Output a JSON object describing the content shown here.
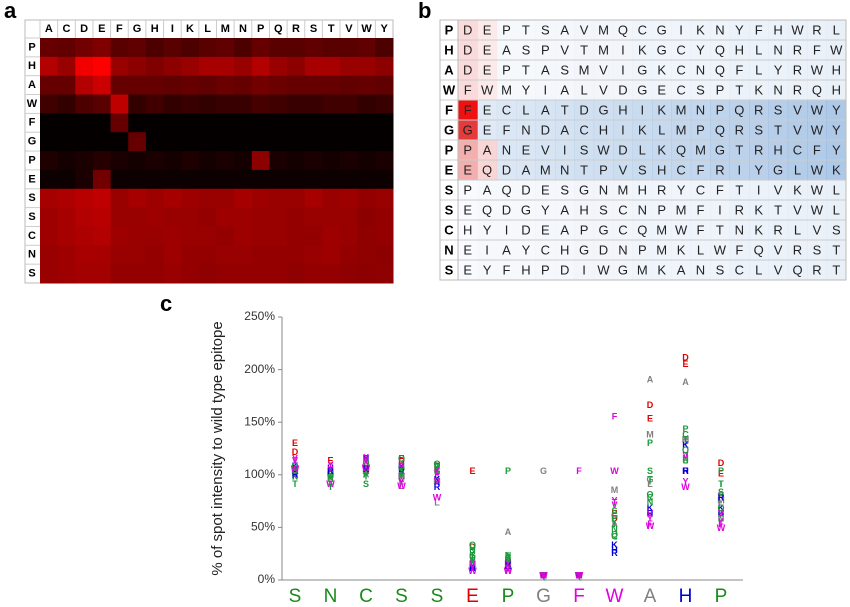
{
  "panel_labels": [
    "a",
    "b",
    "c"
  ],
  "chart_data": [
    {
      "type": "heatmap",
      "columns": [
        "A",
        "C",
        "D",
        "E",
        "F",
        "G",
        "H",
        "I",
        "K",
        "L",
        "M",
        "N",
        "P",
        "Q",
        "R",
        "S",
        "T",
        "V",
        "W",
        "Y"
      ],
      "rows": [
        "P",
        "H",
        "A",
        "W",
        "F",
        "G",
        "P",
        "E",
        "S",
        "S",
        "C",
        "N",
        "S"
      ],
      "values": [
        [
          40,
          38,
          45,
          50,
          35,
          38,
          30,
          35,
          30,
          35,
          38,
          30,
          40,
          35,
          35,
          38,
          35,
          35,
          38,
          30
        ],
        [
          70,
          60,
          95,
          100,
          60,
          55,
          50,
          55,
          60,
          65,
          65,
          60,
          70,
          60,
          55,
          65,
          65,
          60,
          60,
          55
        ],
        [
          40,
          40,
          70,
          80,
          40,
          40,
          40,
          38,
          40,
          38,
          42,
          40,
          45,
          42,
          40,
          40,
          40,
          38,
          40,
          38
        ],
        [
          25,
          20,
          30,
          35,
          75,
          20,
          25,
          20,
          22,
          20,
          22,
          22,
          28,
          25,
          22,
          22,
          25,
          25,
          20,
          22
        ],
        [
          2,
          2,
          2,
          2,
          40,
          2,
          2,
          2,
          2,
          2,
          2,
          2,
          2,
          2,
          2,
          2,
          2,
          2,
          2,
          2
        ],
        [
          2,
          2,
          2,
          2,
          2,
          40,
          2,
          2,
          2,
          2,
          2,
          2,
          2,
          2,
          2,
          2,
          2,
          2,
          2,
          2
        ],
        [
          12,
          8,
          10,
          15,
          10,
          8,
          10,
          8,
          12,
          8,
          10,
          8,
          55,
          10,
          8,
          10,
          8,
          10,
          8,
          10
        ],
        [
          5,
          5,
          10,
          45,
          5,
          5,
          5,
          5,
          5,
          5,
          5,
          5,
          5,
          5,
          5,
          5,
          5,
          5,
          5,
          5
        ],
        [
          65,
          68,
          72,
          75,
          60,
          65,
          62,
          65,
          62,
          60,
          60,
          65,
          62,
          60,
          60,
          65,
          60,
          62,
          58,
          60
        ],
        [
          62,
          65,
          70,
          72,
          60,
          60,
          62,
          60,
          60,
          58,
          62,
          62,
          60,
          60,
          58,
          60,
          60,
          60,
          55,
          58
        ],
        [
          62,
          65,
          68,
          70,
          62,
          60,
          60,
          62,
          60,
          60,
          58,
          62,
          60,
          60,
          58,
          58,
          62,
          60,
          56,
          58
        ],
        [
          60,
          62,
          66,
          65,
          60,
          60,
          58,
          62,
          58,
          58,
          60,
          60,
          58,
          58,
          58,
          60,
          62,
          58,
          56,
          55
        ],
        [
          60,
          62,
          64,
          64,
          58,
          58,
          58,
          60,
          58,
          56,
          58,
          58,
          58,
          58,
          56,
          58,
          58,
          56,
          55,
          56
        ]
      ]
    },
    {
      "type": "scatter",
      "ylabel": "% of spot intensity to wild type epitope",
      "categories": [
        "S",
        "N",
        "C",
        "S",
        "S",
        "E",
        "P",
        "G",
        "F",
        "W",
        "A",
        "H",
        "P"
      ],
      "category_colors": [
        "#1a8a1a",
        "#1a8a1a",
        "#1a8a1a",
        "#1a8a1a",
        "#1a8a1a",
        "#e00000",
        "#1a8a1a",
        "#808080",
        "#e000e0",
        "#e000e0",
        "#808080",
        "#0000d0",
        "#1a8a1a"
      ],
      "letters": [
        "A",
        "C",
        "D",
        "E",
        "F",
        "G",
        "H",
        "I",
        "K",
        "L",
        "M",
        "N",
        "P",
        "Q",
        "R",
        "S",
        "T",
        "V",
        "W",
        "Y"
      ],
      "letter_colors": {
        "A": "#808080",
        "C": "#1a9a3a",
        "D": "#e00000",
        "E": "#e00000",
        "F": "#e000e0",
        "G": "#808080",
        "H": "#0000d0",
        "I": "#1a9a3a",
        "K": "#0000d0",
        "L": "#808080",
        "M": "#808080",
        "N": "#1a9a3a",
        "P": "#1a9a3a",
        "Q": "#1a9a3a",
        "R": "#0000d0",
        "S": "#1a9a3a",
        "T": "#1a9a3a",
        "V": "#e000e0",
        "W": "#e000e0",
        "Y": "#e000e0"
      },
      "values": [
        [
          100,
          105,
          118,
          127,
          95,
          100,
          103,
          100,
          105,
          98,
          100,
          95,
          100,
          105,
          97,
          100,
          88,
          110,
          102,
          112
        ],
        [
          95,
          92,
          100,
          110,
          100,
          98,
          103,
          95,
          100,
          93,
          97,
          100,
          95,
          97,
          100,
          92,
          85,
          102,
          88,
          106
        ],
        [
          97,
          100,
          105,
          112,
          105,
          100,
          112,
          110,
          100,
          98,
          100,
          102,
          97,
          108,
          102,
          88,
          95,
          110,
          103,
          113
        ],
        [
          97,
          92,
          110,
          112,
          88,
          104,
          105,
          100,
          104,
          86,
          95,
          103,
          97,
          112,
          100,
          100,
          95,
          106,
          86,
          90
        ],
        [
          95,
          100,
          105,
          100,
          97,
          100,
          90,
          100,
          92,
          70,
          90,
          106,
          104,
          107,
          85,
          100,
          100,
          90,
          75,
          100
        ],
        [
          12,
          18,
          28,
          100,
          10,
          20,
          8,
          20,
          8,
          15,
          12,
          25,
          15,
          30,
          8,
          20,
          15,
          12,
          5,
          8
        ],
        [
          42,
          18,
          15,
          8,
          5,
          8,
          10,
          20,
          10,
          12,
          12,
          20,
          100,
          15,
          12,
          17,
          15,
          8,
          5,
          12
        ],
        [
          1,
          1,
          1,
          1,
          1,
          100,
          1,
          1,
          1,
          1,
          1,
          1,
          1,
          1,
          1,
          1,
          1,
          1,
          1,
          1
        ],
        [
          1,
          1,
          1,
          1,
          100,
          1,
          1,
          1,
          1,
          1,
          1,
          1,
          1,
          1,
          1,
          1,
          1,
          1,
          1,
          1
        ],
        [
          50,
          38,
          55,
          60,
          152,
          58,
          25,
          50,
          30,
          52,
          82,
          45,
          55,
          40,
          22,
          62,
          70,
          68,
          100,
          72
        ],
        [
          187,
          75,
          163,
          150,
          50,
          92,
          60,
          90,
          65,
          88,
          135,
          70,
          127,
          78,
          60,
          100,
          92,
          60,
          48,
          55
        ],
        [
          185,
          135,
          208,
          202,
          100,
          128,
          100,
          130,
          125,
          110,
          130,
          112,
          140,
          120,
          100,
          110,
          130,
          115,
          85,
          90
        ],
        [
          78,
          60,
          108,
          98,
          50,
          78,
          60,
          88,
          65,
          70,
          72,
          55,
          100,
          65,
          75,
          80,
          88,
          60,
          46,
          52
        ]
      ],
      "ylim": [
        0,
        250
      ],
      "yticks": [
        {
          "value": 0,
          "label": "0%"
        },
        {
          "value": 50,
          "label": "50%"
        },
        {
          "value": 100,
          "label": "100%"
        },
        {
          "value": 150,
          "label": "150%"
        },
        {
          "value": 200,
          "label": "200%"
        },
        {
          "value": 250,
          "label": "250%"
        }
      ]
    }
  ],
  "grid": {
    "rows": [
      {
        "head": "P",
        "cells": [
          "D",
          "E",
          "P",
          "T",
          "S",
          "A",
          "V",
          "M",
          "Q",
          "C",
          "G",
          "I",
          "K",
          "N",
          "Y",
          "F",
          "H",
          "W",
          "R",
          "L"
        ]
      },
      {
        "head": "H",
        "cells": [
          "D",
          "E",
          "A",
          "S",
          "P",
          "V",
          "T",
          "M",
          "I",
          "K",
          "G",
          "C",
          "Y",
          "Q",
          "H",
          "L",
          "N",
          "R",
          "F",
          "W"
        ]
      },
      {
        "head": "A",
        "cells": [
          "D",
          "E",
          "P",
          "T",
          "A",
          "S",
          "M",
          "V",
          "I",
          "G",
          "K",
          "C",
          "N",
          "Q",
          "F",
          "L",
          "Y",
          "R",
          "W",
          "H"
        ]
      },
      {
        "head": "W",
        "cells": [
          "F",
          "W",
          "M",
          "Y",
          "I",
          "A",
          "L",
          "V",
          "D",
          "G",
          "E",
          "C",
          "S",
          "P",
          "T",
          "K",
          "N",
          "R",
          "Q",
          "H"
        ]
      },
      {
        "head": "F",
        "cells": [
          "F",
          "E",
          "C",
          "L",
          "A",
          "T",
          "D",
          "G",
          "H",
          "I",
          "K",
          "M",
          "N",
          "P",
          "Q",
          "R",
          "S",
          "V",
          "W",
          "Y"
        ]
      },
      {
        "head": "G",
        "cells": [
          "G",
          "E",
          "F",
          "N",
          "D",
          "A",
          "C",
          "H",
          "I",
          "K",
          "L",
          "M",
          "P",
          "Q",
          "R",
          "S",
          "T",
          "V",
          "W",
          "Y"
        ]
      },
      {
        "head": "P",
        "cells": [
          "P",
          "A",
          "N",
          "E",
          "V",
          "I",
          "S",
          "W",
          "D",
          "L",
          "K",
          "Q",
          "M",
          "G",
          "T",
          "R",
          "H",
          "C",
          "F",
          "Y"
        ]
      },
      {
        "head": "E",
        "cells": [
          "E",
          "Q",
          "D",
          "A",
          "M",
          "N",
          "T",
          "P",
          "V",
          "S",
          "H",
          "C",
          "F",
          "R",
          "I",
          "Y",
          "G",
          "L",
          "W",
          "K"
        ]
      },
      {
        "head": "S",
        "cells": [
          "P",
          "A",
          "Q",
          "D",
          "E",
          "S",
          "G",
          "N",
          "M",
          "H",
          "R",
          "Y",
          "C",
          "F",
          "T",
          "I",
          "V",
          "K",
          "W",
          "L"
        ]
      },
      {
        "head": "S",
        "cells": [
          "E",
          "Q",
          "D",
          "G",
          "Y",
          "A",
          "H",
          "S",
          "C",
          "N",
          "P",
          "M",
          "F",
          "I",
          "R",
          "K",
          "T",
          "V",
          "W",
          "L"
        ]
      },
      {
        "head": "C",
        "cells": [
          "H",
          "Y",
          "I",
          "D",
          "E",
          "A",
          "P",
          "G",
          "C",
          "Q",
          "M",
          "W",
          "F",
          "T",
          "N",
          "K",
          "R",
          "L",
          "V",
          "S"
        ]
      },
      {
        "head": "N",
        "cells": [
          "E",
          "I",
          "A",
          "Y",
          "C",
          "H",
          "G",
          "D",
          "N",
          "P",
          "M",
          "K",
          "L",
          "W",
          "F",
          "Q",
          "V",
          "R",
          "S",
          "T"
        ]
      },
      {
        "head": "S",
        "cells": [
          "E",
          "Y",
          "F",
          "H",
          "P",
          "D",
          "I",
          "W",
          "G",
          "M",
          "K",
          "A",
          "N",
          "S",
          "C",
          "L",
          "V",
          "Q",
          "R",
          "T"
        ]
      }
    ]
  }
}
